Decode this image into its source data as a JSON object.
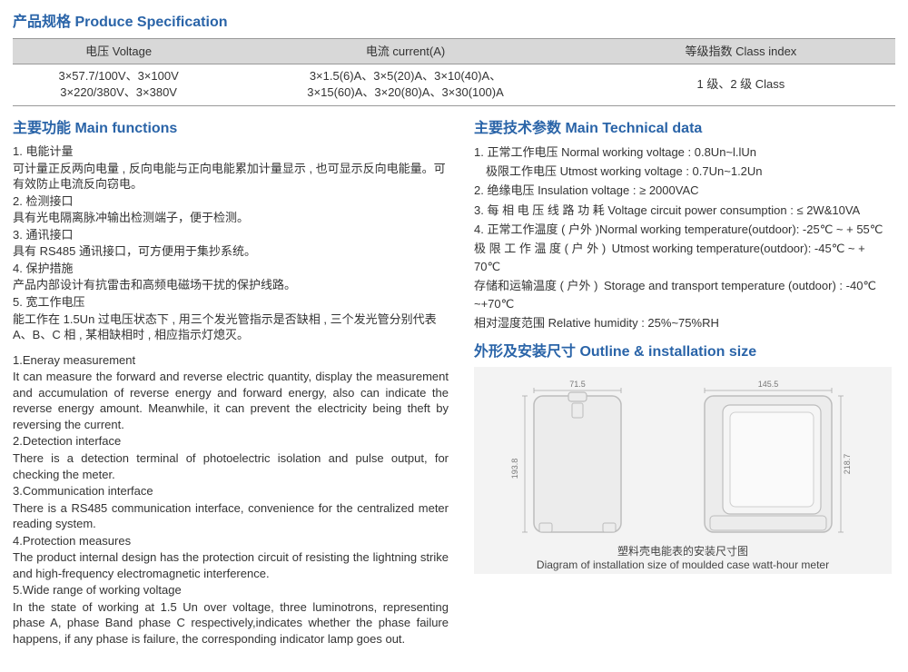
{
  "colors": {
    "heading": "#2a64a8",
    "text": "#333333",
    "table_header_bg": "#d8d8d8",
    "table_border": "#999999",
    "diagram_bg": "#f3f3f3",
    "diagram_stroke": "#bdbdbd",
    "dim_text": "#777777"
  },
  "spec": {
    "title": "产品规格 Produce Specification",
    "columns": [
      "电压 Voltage",
      "电流 current(A)",
      "等级指数 Class index"
    ],
    "widths_pct": [
      24,
      41,
      35
    ],
    "row": {
      "voltage": "3×57.7/100V、3×100V\n3×220/380V、3×380V",
      "current": "3×1.5(6)A、3×5(20)A、3×10(40)A、\n3×15(60)A、3×20(80)A、3×30(100)A",
      "class": "1 级、2 级 Class"
    }
  },
  "functions": {
    "title": "主要功能 Main functions",
    "zh": [
      "1. 电能计量",
      "可计量正反两向电量 , 反向电能与正向电能累加计量显示 , 也可显示反向电能量。可有效防止电流反向窃电。",
      "2. 检测接口",
      "具有光电隔离脉冲输出检测端子，便于检测。",
      "3. 通讯接口",
      "具有 RS485 通讯接口，可方便用于集抄系统。",
      "4. 保护措施",
      "产品内部设计有抗雷击和高频电磁场干扰的保护线路。",
      "5. 宽工作电压",
      "能工作在 1.5Un 过电压状态下 , 用三个发光管指示是否缺相 , 三个发光管分别代表 A、B、C 相 , 某相缺相时 , 相应指示灯熄灭。"
    ],
    "en": [
      "1.Eneray measurement",
      "It can measure the forward and reverse electric quantity, display the measurement and accumulation of reverse energy and forward energy, also can indicate the reverse energy amount. Meanwhile, it can prevent the electricity being theft by reversing the current.",
      "2.Detection interface",
      "There is a detection terminal of photoelectric isolation and pulse output, for checking the meter.",
      "3.Communication interface",
      "There is a RS485 communication interface, convenience for the centralized meter reading system.",
      "4.Protection measures",
      "The product internal design has the protection circuit of resisting the lightning strike and high-frequency electromagnetic interference.",
      "5.Wide range of working voltage",
      "In the state of working at 1.5 Un over voltage, three luminotrons, representing phase A, phase Band phase C respectively,indicates whether the phase failure happens, if any phase is failure, the corresponding indicator lamp goes out."
    ]
  },
  "tech": {
    "title": "主要技术参数 Main Technical data",
    "lines": [
      "1. 正常工作电压 Normal working voltage : 0.8Un~l.lUn",
      " 极限工作电压 Utmost working voltage : 0.7Un~1.2Un",
      "2. 绝缘电压 Insulation voltage : ≥ 2000VAC",
      "3. 每 相 电 压 线 路 功 耗 Voltage circuit power consumption : ≤ 2W&10VA",
      "4. 正常工作温度 ( 户外 )Normal working temperature(outdoor): -25℃ ~ + 55℃",
      "极 限 工 作 温 度 ( 户 外 ) Utmost working temperature(outdoor): -45℃ ~ + 70℃",
      "存储和运输温度 ( 户外 ) Storage and transport temperature (outdoor) : -40℃ ~+70℃",
      "相对湿度范围 Relative humidity : 25%~75%RH"
    ]
  },
  "outline": {
    "title": "外形及安装尺寸 Outline & installation size",
    "caption_zh": "塑料壳电能表的安装尺寸图",
    "caption_en": "Diagram of installation size of moulded case watt-hour meter",
    "dims": {
      "front_top": "71.5",
      "front_side": "193.8",
      "side_top": "145.5",
      "side_right": "218.7"
    },
    "diagram_style": {
      "stroke": "#bdbdbd",
      "fill": "#ececec",
      "corner_radius": 10
    }
  }
}
